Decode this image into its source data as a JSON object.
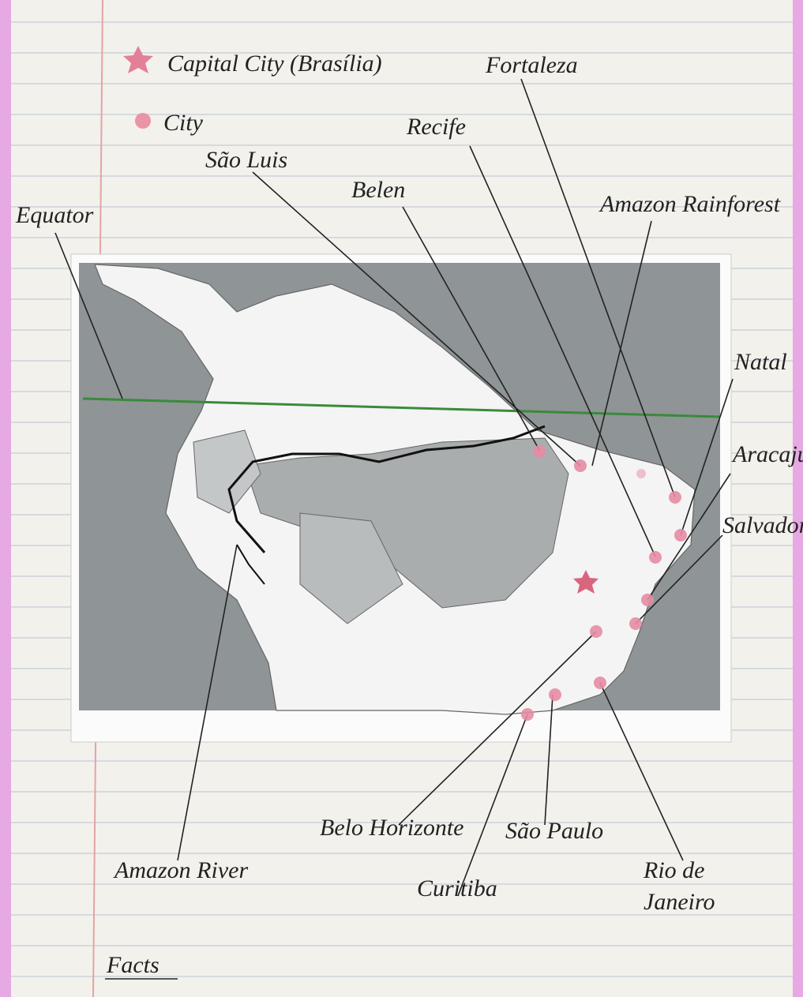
{
  "legend": {
    "capital": "Capital City (Brasília)",
    "city": "City"
  },
  "labels": [
    "Fortaleza",
    "Recife",
    "São Luis",
    "Belen",
    "Amazon Rainforest",
    "Equator",
    "Natal",
    "Aracaju",
    "Salvador",
    "Belo Horizonte",
    "São Paulo",
    "Rio de Janeiro",
    "Curitiba",
    "Amazon River"
  ],
  "facts": "Facts"
}
